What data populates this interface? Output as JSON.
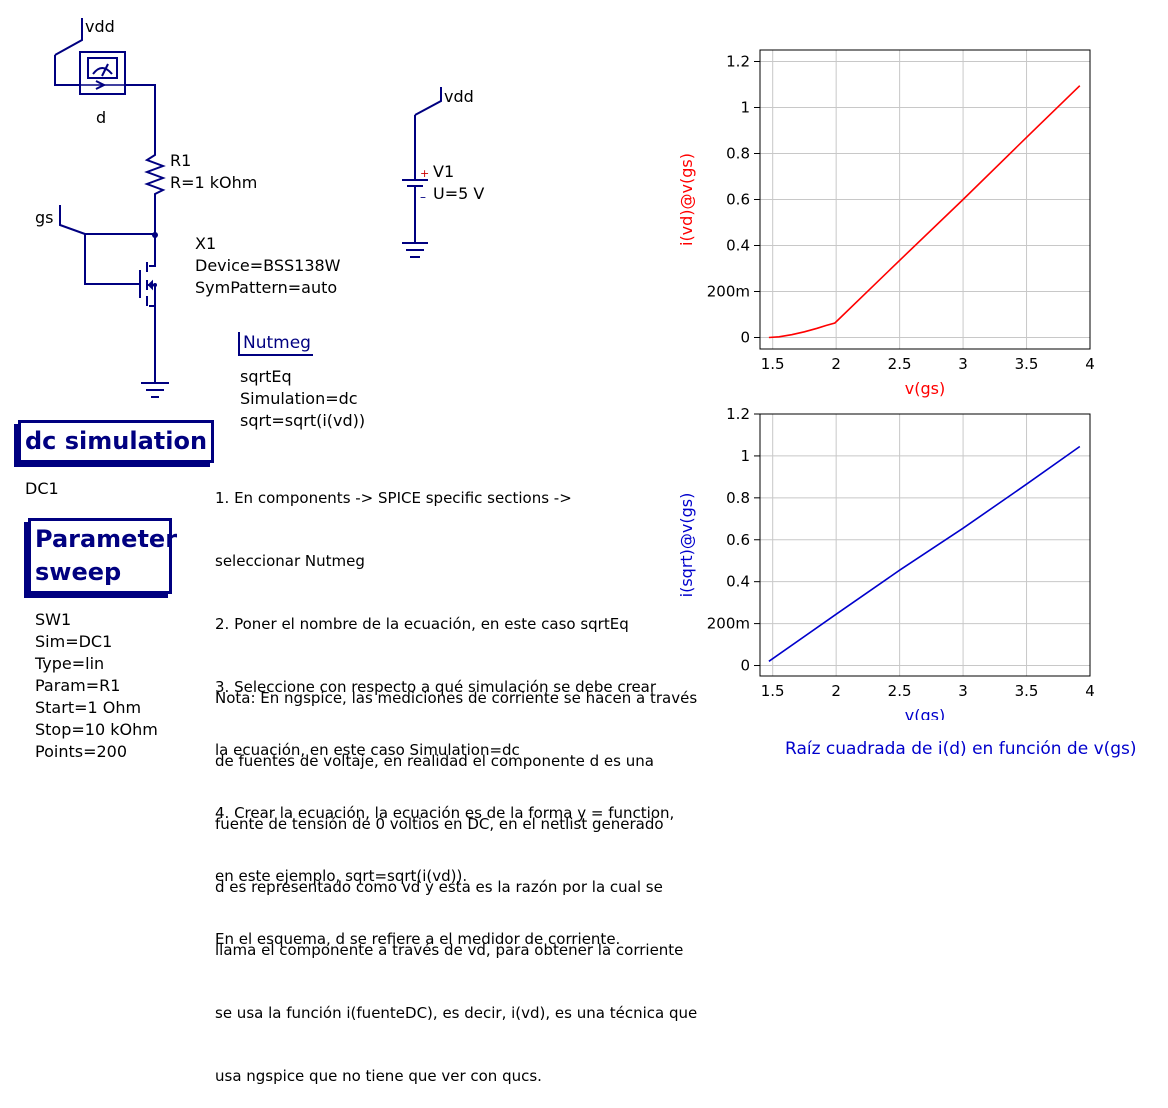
{
  "schematic": {
    "vdd_top_label": "vdd",
    "ammeter_label": "d",
    "resistor": {
      "name": "R1",
      "value": "R=1 kOhm"
    },
    "gs_label": "gs",
    "transistor": {
      "name": "X1",
      "device": "Device=BSS138W",
      "sym": "SymPattern=auto"
    },
    "source_vdd_label": "vdd",
    "source": {
      "name": "V1",
      "value": "U=5 V",
      "plus": "+",
      "minus": "–"
    }
  },
  "nutmeg": {
    "title": "Nutmeg",
    "lines": [
      "sqrtEq",
      "Simulation=dc",
      "sqrt=sqrt(i(vd))"
    ]
  },
  "dc_simulation": {
    "title": "dc simulation",
    "name": "DC1"
  },
  "parameter_sweep": {
    "title_line1": "Parameter",
    "title_line2": "sweep",
    "lines": [
      "SW1",
      "Sim=DC1",
      "Type=lin",
      "Param=R1",
      "Start=1 Ohm",
      "Stop=10 kOhm",
      "Points=200"
    ]
  },
  "instructions": [
    "1. En components -> SPICE specific sections ->",
    "seleccionar Nutmeg",
    "2. Poner el nombre de la ecuación, en este caso sqrtEq",
    "3. Seleccione con respecto a qué simulación se debe crear",
    "la ecuación, en este caso Simulation=dc",
    "4. Crear la ecuación, la ecuación es de la forma y = function,",
    "en este ejemplo, sqrt=sqrt(i(vd)).",
    "En el esquema, d se refiere a el medidor de corriente."
  ],
  "note": [
    "Nota: En ngspice, las mediciones de corriente se hacen a través",
    "de fuentes de voltaje, en realidad el componente d es una",
    "fuente de tensión de 0 voltios en DC, en el netlist generado",
    "d es representado como vd y esta es la razón por la cual se",
    "llama el componente a través de vd, para obtener la corriente",
    "se usa la función i(fuenteDC), es decir, i(vd), es una técnica que",
    "usa ngspice que no tiene que ver con qucs."
  ],
  "caption": "Raíz cuadrada de i(d) en función de v(gs)",
  "chart_data": [
    {
      "type": "line",
      "xlabel": "v(gs)",
      "ylabel": "i(vd)@v(gs)",
      "xlim": [
        1.4,
        4.0
      ],
      "ylim": [
        -0.05,
        1.25
      ],
      "xticks": [
        1.5,
        2,
        2.5,
        3,
        3.5,
        4
      ],
      "xtick_labels": [
        "1.5",
        "2",
        "2.5",
        "3",
        "3.5",
        "4"
      ],
      "yticks": [
        0,
        0.2,
        0.4,
        0.6,
        0.8,
        1,
        1.2
      ],
      "ytick_labels": [
        "0",
        "200m",
        "0.4",
        "0.6",
        "0.8",
        "1",
        "1.2"
      ],
      "grid": true,
      "color": "#ff0000",
      "series": [
        {
          "x": [
            1.47,
            1.55,
            1.65,
            1.75,
            1.85,
            1.92,
            1.99,
            2.5,
            3.0,
            3.5,
            3.92
          ],
          "y": [
            0.0,
            0.003,
            0.012,
            0.025,
            0.04,
            0.052,
            0.063,
            0.335,
            0.6,
            0.87,
            1.095
          ]
        }
      ]
    },
    {
      "type": "line",
      "xlabel": "v(gs)",
      "ylabel": "i(sqrt)@v(gs)",
      "xlim": [
        1.4,
        4.0
      ],
      "ylim": [
        -0.05,
        1.2
      ],
      "xticks": [
        1.5,
        2,
        2.5,
        3,
        3.5,
        4
      ],
      "xtick_labels": [
        "1.5",
        "2",
        "2.5",
        "3",
        "3.5",
        "4"
      ],
      "yticks": [
        0,
        0.2,
        0.4,
        0.6,
        0.8,
        1,
        1.2
      ],
      "ytick_labels": [
        "0",
        "200m",
        "0.4",
        "0.6",
        "0.8",
        "1",
        "1.2"
      ],
      "grid": true,
      "color": "#0000cc",
      "series": [
        {
          "x": [
            1.47,
            2.0,
            2.5,
            3.0,
            3.5,
            3.92
          ],
          "y": [
            0.02,
            0.245,
            0.455,
            0.655,
            0.865,
            1.045
          ]
        }
      ]
    }
  ]
}
